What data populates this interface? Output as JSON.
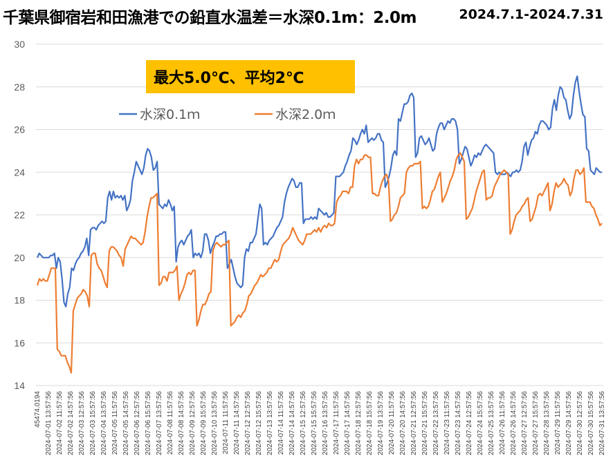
{
  "title": "千葉県御宿岩和田漁港での鉛直水温差＝水深0.1m：2.0m",
  "period": "2024.7.1-2024.7.31",
  "annotation": "最大5.0℃、平均2℃",
  "colors": {
    "series_0": "#4472C4",
    "series_1": "#ED7D31",
    "annotation_bg": "#FFC000",
    "grid": "#D9D9D9"
  },
  "chart_data": {
    "type": "line",
    "ylim": [
      14,
      30
    ],
    "yticks": [
      "14",
      "16",
      "18",
      "20",
      "22",
      "24",
      "26",
      "28",
      "30"
    ],
    "grid": true,
    "legend_position": "top-left",
    "x_tick_labels": [
      "45474.0194",
      "2024-07-01 13:57:56",
      "2024-07-02 11:57:56",
      "2024-07-02 14:57:56",
      "2024-07-03 12:57:56",
      "2024-07-03 15:57:56",
      "2024-07-04 13:57:56",
      "2024-07-05 11:57:56",
      "2024-07-05 14:57:56",
      "2024-07-06 12:57:56",
      "2024-07-06 15:57:56",
      "2024-07-07 13:57:56",
      "2024-07-08 11:57:56",
      "2024-07-08 14:57:56",
      "2024-07-09 12:57:56",
      "2024-07-09 15:57:56",
      "2024-07-10 13:57:56",
      "2024-07-11 11:57:56",
      "2024-07-11 14:57:56",
      "2024-07-12 12:57:56",
      "2024-07-12 15:57:56",
      "2024-07-13 13:57:56",
      "2024-07-14 11:57:56",
      "2024-07-14 14:57:56",
      "2024-07-15 12:57:56",
      "2024-07-15 15:57:56",
      "2024-07-16 13:57:56",
      "2024-07-17 11:57:56",
      "2024-07-17 14:57:56",
      "2024-07-18 12:57:56",
      "2024-07-18 15:57:56",
      "2024-07-19 13:57:56",
      "2024-07-20 11:57:56",
      "2024-07-20 14:57:56",
      "2024-07-21 12:57:56",
      "2024-07-21 15:57:56",
      "2024-07-22 13:57:56",
      "2024-07-23 11:57:56",
      "2024-07-23 14:57:56",
      "2024-07-24 12:57:56",
      "2024-07-24 15:57:56",
      "2024-07-25 13:57:56",
      "2024-07-26 11:57:56",
      "2024-07-26 14:57:56",
      "2024-07-27 12:57:56",
      "2024-07-27 15:57:56",
      "2024-07-28 13:57:56",
      "2024-07-29 11:57:56",
      "2024-07-29 14:57:56",
      "2024-07-30 12:57:56",
      "2024-07-30 15:57:56",
      "2024-07-31 13:57:56"
    ],
    "series": [
      {
        "name": "水深0.1ｍ",
        "color": "#4472C4",
        "values": [
          20.0,
          20.2,
          20.1,
          20.0,
          20.0,
          20.0,
          20.0,
          20.1,
          20.1,
          20.2,
          19.5,
          20.0,
          19.8,
          19.0,
          17.9,
          17.7,
          18.3,
          18.6,
          19.5,
          19.4,
          19.7,
          19.9,
          20.0,
          20.2,
          20.3,
          20.5,
          20.9,
          20.1,
          21.3,
          21.4,
          21.4,
          21.3,
          21.5,
          21.6,
          21.7,
          21.6,
          21.7,
          22.8,
          23.1,
          22.7,
          23.1,
          22.8,
          22.9,
          22.8,
          22.9,
          22.7,
          22.9,
          22.2,
          22.4,
          22.7,
          23.6,
          24.0,
          24.5,
          24.3,
          24.1,
          23.9,
          24.2,
          24.8,
          25.1,
          25.0,
          24.7,
          24.1,
          24.2,
          24.5,
          22.5,
          22.4,
          22.3,
          22.5,
          22.4,
          22.7,
          22.5,
          22.2,
          22.4,
          19.8,
          20.5,
          20.7,
          20.8,
          20.6,
          20.8,
          21.0,
          21.1,
          21.3,
          20.0,
          20.2,
          20.1,
          20.2,
          20.0,
          20.3,
          21.1,
          21.1,
          20.8,
          20.2,
          20.5,
          20.7,
          21.0,
          21.0,
          21.1,
          21.1,
          21.2,
          21.2,
          19.5,
          19.7,
          19.9,
          19.5,
          19.1,
          18.8,
          18.7,
          18.6,
          18.7,
          20.0,
          20.4,
          20.3,
          20.7,
          20.7,
          20.9,
          21.1,
          21.8,
          22.5,
          22.3,
          20.6,
          20.7,
          20.6,
          20.8,
          20.9,
          21.0,
          21.2,
          21.4,
          21.5,
          21.7,
          21.9,
          22.6,
          23.0,
          23.3,
          23.5,
          23.7,
          23.6,
          23.3,
          23.3,
          23.5,
          23.5,
          21.6,
          21.8,
          21.8,
          21.8,
          21.9,
          21.8,
          21.9,
          21.8,
          22.3,
          22.2,
          22.1,
          22.0,
          22.1,
          21.9,
          21.9,
          22.0,
          22.1,
          23.8,
          23.8,
          23.8,
          23.9,
          24.0,
          24.3,
          24.5,
          24.8,
          25.0,
          25.6,
          25.5,
          25.3,
          25.5,
          25.8,
          26.0,
          25.8,
          26.2,
          25.4,
          25.5,
          25.6,
          25.5,
          25.6,
          25.8,
          25.8,
          25.5,
          25.4,
          23.3,
          23.5,
          23.8,
          24.2,
          24.8,
          25.0,
          24.8,
          26.5,
          26.4,
          26.8,
          27.2,
          27.2,
          27.3,
          27.6,
          27.7,
          27.5,
          24.7,
          24.9,
          25.6,
          25.7,
          25.5,
          25.3,
          25.4,
          25.6,
          25.3,
          25.0,
          25.1,
          25.8,
          26.1,
          26.3,
          26.3,
          26.0,
          26.2,
          26.4,
          26.3,
          26.5,
          26.5,
          26.4,
          26.0,
          24.4,
          24.6,
          24.9,
          25.2,
          25.1,
          24.7,
          24.3,
          24.5,
          24.8,
          24.7,
          24.9,
          24.8,
          25.0,
          25.2,
          25.3,
          25.2,
          25.1,
          25.0,
          24.9,
          24.0,
          23.9,
          24.0,
          23.9,
          23.9,
          23.9,
          24.0,
          23.9,
          23.8,
          24.0,
          24.0,
          24.1,
          24.0,
          24.1,
          24.5,
          25.2,
          25.4,
          24.8,
          25.2,
          25.5,
          25.6,
          25.9,
          25.8,
          26.2,
          26.4,
          26.4,
          26.3,
          26.2,
          26.0,
          26.1,
          27.0,
          27.4,
          26.9,
          27.6,
          28.0,
          27.9,
          27.5,
          27.4,
          26.9,
          26.5,
          26.7,
          27.6,
          28.2,
          28.5,
          27.8,
          27.2,
          26.7,
          26.6,
          25.1,
          25.0,
          24.1,
          24.0,
          23.9,
          24.2,
          24.1,
          24.0,
          24.0
        ],
        "x_start_label": "45474.0194"
      },
      {
        "name": "水深2.0ｍ",
        "color": "#ED7D31",
        "values": [
          18.7,
          19.0,
          18.9,
          19.0,
          18.9,
          18.9,
          19.2,
          19.5,
          19.5,
          19.5,
          15.7,
          15.6,
          15.4,
          15.4,
          15.4,
          15.1,
          14.9,
          14.6,
          17.5,
          17.8,
          18.1,
          18.2,
          18.3,
          18.5,
          18.4,
          18.2,
          17.7,
          20.1,
          20.2,
          20.2,
          19.7,
          19.5,
          19.4,
          19.1,
          18.8,
          18.6,
          20.3,
          20.5,
          20.5,
          20.4,
          20.3,
          20.1,
          20.0,
          19.6,
          20.4,
          20.6,
          20.8,
          21.0,
          20.9,
          20.9,
          20.8,
          20.7,
          20.6,
          20.7,
          21.2,
          21.9,
          22.4,
          22.8,
          22.8,
          22.9,
          23.0,
          18.7,
          18.8,
          19.1,
          19.1,
          18.9,
          19.3,
          19.3,
          19.3,
          19.4,
          19.6,
          18.0,
          18.3,
          18.5,
          18.8,
          19.2,
          19.3,
          19.2,
          19.4,
          19.4,
          16.8,
          17.1,
          17.5,
          17.8,
          17.8,
          18.0,
          18.3,
          18.4,
          20.3,
          20.6,
          20.7,
          20.6,
          20.5,
          20.6,
          20.6,
          20.7,
          20.8,
          16.8,
          16.9,
          17.0,
          17.2,
          17.3,
          17.2,
          17.4,
          17.5,
          17.8,
          18.2,
          18.3,
          18.5,
          18.7,
          18.8,
          19.0,
          19.2,
          19.1,
          19.2,
          19.3,
          19.5,
          19.5,
          19.7,
          19.9,
          19.8,
          19.9,
          20.3,
          20.6,
          20.7,
          20.8,
          20.9,
          21.1,
          21.4,
          21.2,
          21.0,
          20.8,
          20.7,
          20.6,
          20.8,
          21.1,
          21.1,
          21.1,
          21.2,
          21.3,
          21.2,
          21.4,
          21.2,
          21.4,
          21.5,
          21.4,
          21.6,
          21.5,
          21.5,
          21.6,
          22.6,
          22.8,
          22.9,
          23.1,
          23.1,
          23.1,
          23.0,
          23.3,
          23.3,
          24.3,
          24.6,
          24.4,
          24.6,
          24.6,
          24.8,
          24.8,
          24.7,
          24.7,
          23.0,
          23.0,
          22.9,
          22.9,
          23.3,
          23.6,
          23.8,
          23.9,
          23.6,
          21.7,
          21.8,
          22.0,
          22.1,
          22.4,
          22.8,
          22.9,
          23.0,
          24.0,
          24.2,
          24.3,
          24.3,
          24.4,
          24.4,
          24.4,
          24.5,
          22.3,
          22.4,
          22.3,
          22.4,
          22.7,
          23.1,
          23.2,
          23.5,
          23.8,
          24.0,
          22.6,
          22.8,
          23.0,
          23.3,
          23.6,
          23.8,
          24.1,
          24.6,
          24.8,
          24.9,
          24.7,
          24.5,
          21.8,
          21.9,
          22.1,
          22.3,
          22.7,
          23.1,
          23.4,
          23.7,
          24.0,
          24.1,
          22.7,
          22.8,
          22.8,
          22.9,
          23.3,
          23.5,
          23.7,
          23.9,
          24.0,
          24.1,
          24.0,
          23.9,
          21.1,
          21.3,
          21.7,
          22.0,
          22.1,
          22.2,
          22.4,
          22.5,
          22.7,
          22.8,
          21.7,
          21.8,
          22.1,
          22.4,
          22.9,
          23.0,
          22.9,
          23.1,
          23.3,
          23.5,
          22.2,
          22.5,
          23.1,
          23.5,
          23.3,
          23.4,
          23.5,
          23.7,
          23.5,
          23.4,
          22.9,
          23.1,
          23.7,
          24.1,
          24.1,
          23.9,
          24.0,
          24.2,
          22.6,
          22.6,
          22.6,
          22.4,
          22.3,
          22.0,
          21.8,
          21.5,
          21.6
        ]
      }
    ]
  }
}
